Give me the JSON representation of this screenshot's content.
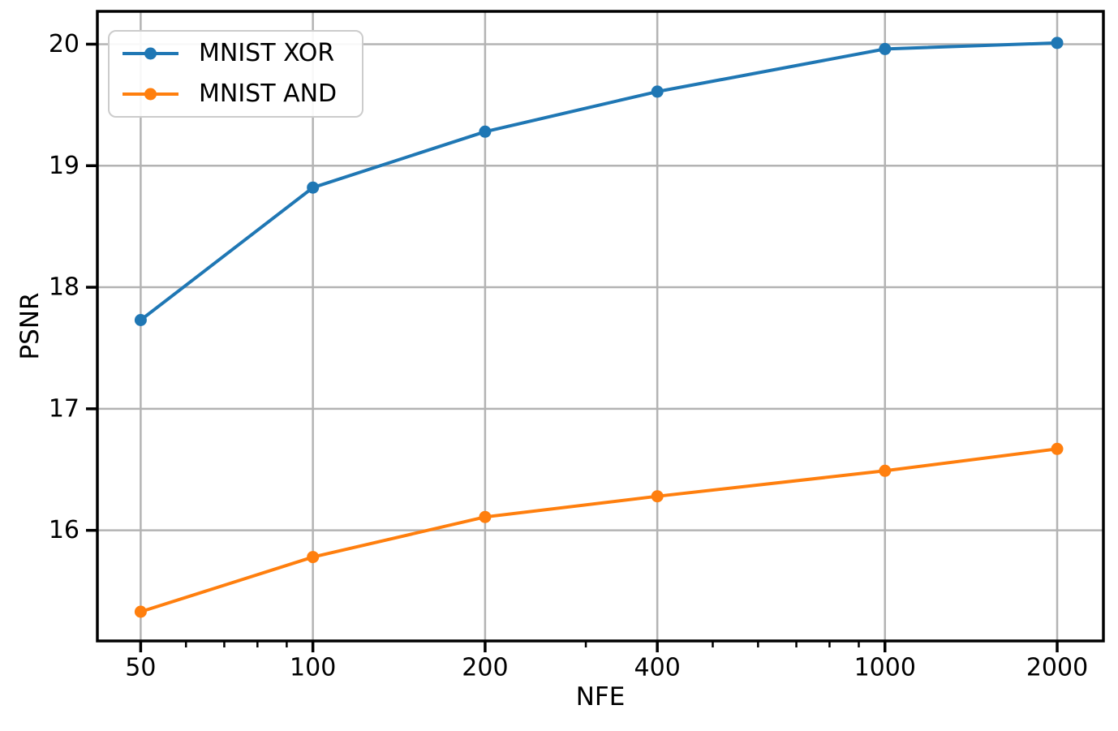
{
  "chart_data": {
    "type": "line",
    "title": "",
    "xlabel": "NFE",
    "ylabel": "PSNR",
    "x_scale": "log",
    "grid": true,
    "legend_position": "upper left",
    "x": [
      50,
      100,
      200,
      400,
      1000,
      2000
    ],
    "series": [
      {
        "name": "MNIST XOR",
        "color": "#1f77b4",
        "values": [
          17.73,
          18.82,
          19.28,
          19.61,
          19.96,
          20.01
        ]
      },
      {
        "name": "MNIST AND",
        "color": "#ff7f0e",
        "values": [
          15.33,
          15.78,
          16.11,
          16.28,
          16.49,
          16.67
        ]
      }
    ],
    "x_ticks": [
      50,
      100,
      200,
      400,
      1000,
      2000
    ],
    "x_tick_labels": [
      "50",
      "100",
      "200",
      "400",
      "1000",
      "2000"
    ],
    "x_minor_ticks": [
      60,
      70,
      80,
      90,
      300,
      500,
      600,
      700,
      800,
      900
    ],
    "y_ticks": [
      16,
      17,
      18,
      19,
      20
    ],
    "y_tick_labels": [
      "16",
      "17",
      "18",
      "19",
      "20"
    ],
    "xlim": [
      42,
      2409
    ],
    "ylim": [
      15.09,
      20.27
    ],
    "grid_color": "#b3b3b3",
    "axis_color": "#000000",
    "marker": "circle"
  }
}
